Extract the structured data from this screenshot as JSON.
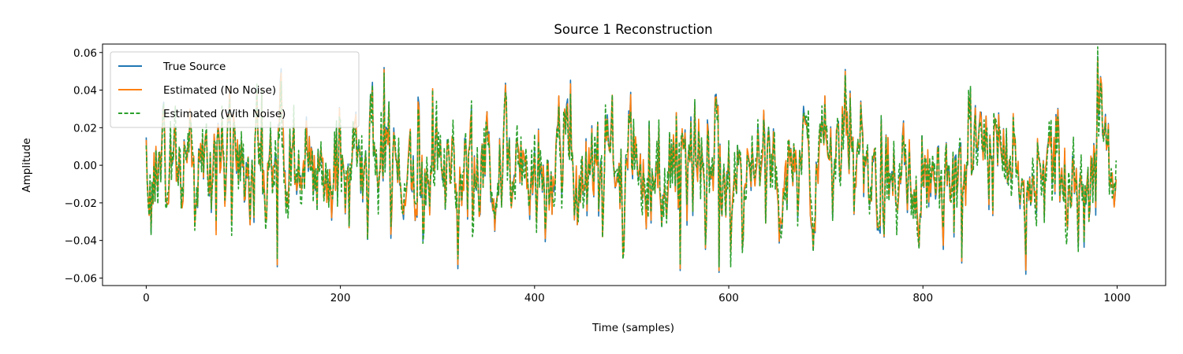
{
  "chart_data": {
    "type": "line",
    "title": "Source 1 Reconstruction",
    "xlabel": "Time (samples)",
    "ylabel": "Amplitude",
    "xlim": [
      -45,
      1050
    ],
    "ylim": [
      -0.064,
      0.0645
    ],
    "xticks": [
      0,
      200,
      400,
      600,
      800,
      1000
    ],
    "xtick_labels": [
      "0",
      "200",
      "400",
      "600",
      "800",
      "1000"
    ],
    "yticks": [
      -0.06,
      -0.04,
      -0.02,
      0.0,
      0.02,
      0.04,
      0.06
    ],
    "ytick_labels": [
      "−0.06",
      "−0.04",
      "−0.02",
      "0.00",
      "0.02",
      "0.04",
      "0.06"
    ],
    "grid": false,
    "legend_position": "top-left",
    "n_samples": 1000,
    "series": [
      {
        "name": "True Source",
        "color": "#1f77b4",
        "style": "solid",
        "notable_points": [
          [
            135,
            -0.054
          ],
          [
            245,
            0.052
          ],
          [
            550,
            -0.056
          ],
          [
            590,
            -0.057
          ],
          [
            720,
            0.051
          ],
          [
            840,
            -0.052
          ],
          [
            980,
            0.058
          ]
        ]
      },
      {
        "name": "Estimated (No Noise)",
        "color": "#ff7f0e",
        "style": "solid",
        "notable_points": [
          [
            135,
            -0.053
          ],
          [
            245,
            0.051
          ],
          [
            550,
            -0.055
          ],
          [
            590,
            -0.056
          ],
          [
            720,
            0.05
          ],
          [
            840,
            -0.051
          ],
          [
            980,
            0.057
          ]
        ]
      },
      {
        "name": "Estimated (With Noise)",
        "color": "#2ca02c",
        "style": "dashed",
        "notable_points": [
          [
            135,
            -0.05
          ],
          [
            245,
            0.049
          ],
          [
            550,
            -0.053
          ],
          [
            590,
            -0.054
          ],
          [
            720,
            0.048
          ],
          [
            840,
            -0.049
          ],
          [
            980,
            0.063
          ]
        ]
      }
    ]
  }
}
